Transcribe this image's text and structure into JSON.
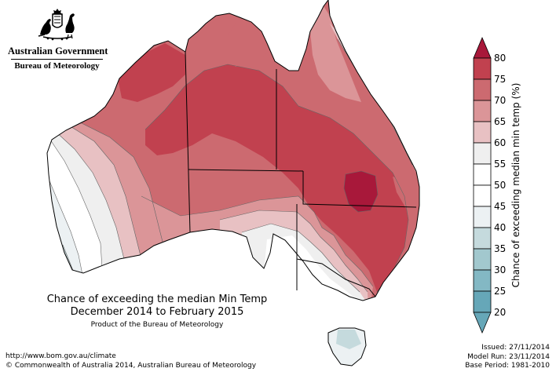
{
  "header": {
    "gov_name": "Australian Government",
    "agency_name": "Bureau of Meteorology"
  },
  "map": {
    "title_line1": "Chance of exceeding the median Min Temp",
    "title_line2": "December 2014 to February 2015",
    "product_note": "Product of the Bureau of Meteorology"
  },
  "colorbar": {
    "title": "Chance of exceeding median min temp (%)",
    "ticks": [
      "80",
      "75",
      "70",
      "65",
      "60",
      "55",
      "50",
      "45",
      "40",
      "35",
      "30",
      "25",
      "20"
    ],
    "colors": {
      "c80": "#a8183a",
      "c75": "#c1414f",
      "c70": "#cc6a70",
      "c65": "#db9598",
      "c60": "#e8c1c3",
      "c55": "#efefef",
      "c50": "#ffffff",
      "c45": "#ecf1f3",
      "c40": "#c5dadd",
      "c35": "#a2c8ce",
      "c30": "#83b8c4",
      "c25": "#66a7b8"
    }
  },
  "footer": {
    "url": "http://www.bom.gov.au/climate",
    "copyright": "© Commonwealth of Australia 2014, Australian Bureau of Meteorology",
    "issued": "Issued: 27/11/2014",
    "model_run": "Model Run: 23/11/2014",
    "base_period": "Base Period: 1981-2010"
  }
}
